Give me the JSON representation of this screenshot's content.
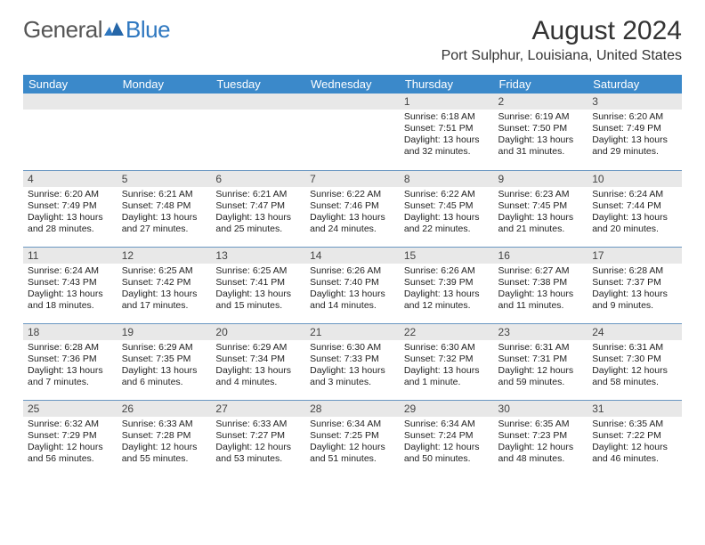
{
  "logo": {
    "word1": "General",
    "word2": "Blue"
  },
  "title": "August 2024",
  "location": "Port Sulphur, Louisiana, United States",
  "colors": {
    "header_bg": "#3b89ca",
    "header_text": "#ffffff",
    "daynum_bg": "#e8e8e8",
    "row_divider": "#6a97c2",
    "logo_gray": "#555555",
    "logo_blue": "#2f78c0"
  },
  "weekdays": [
    "Sunday",
    "Monday",
    "Tuesday",
    "Wednesday",
    "Thursday",
    "Friday",
    "Saturday"
  ],
  "weeks": [
    [
      null,
      null,
      null,
      null,
      {
        "d": "1",
        "sr": "Sunrise: 6:18 AM",
        "ss": "Sunset: 7:51 PM",
        "dl": "Daylight: 13 hours and 32 minutes."
      },
      {
        "d": "2",
        "sr": "Sunrise: 6:19 AM",
        "ss": "Sunset: 7:50 PM",
        "dl": "Daylight: 13 hours and 31 minutes."
      },
      {
        "d": "3",
        "sr": "Sunrise: 6:20 AM",
        "ss": "Sunset: 7:49 PM",
        "dl": "Daylight: 13 hours and 29 minutes."
      }
    ],
    [
      {
        "d": "4",
        "sr": "Sunrise: 6:20 AM",
        "ss": "Sunset: 7:49 PM",
        "dl": "Daylight: 13 hours and 28 minutes."
      },
      {
        "d": "5",
        "sr": "Sunrise: 6:21 AM",
        "ss": "Sunset: 7:48 PM",
        "dl": "Daylight: 13 hours and 27 minutes."
      },
      {
        "d": "6",
        "sr": "Sunrise: 6:21 AM",
        "ss": "Sunset: 7:47 PM",
        "dl": "Daylight: 13 hours and 25 minutes."
      },
      {
        "d": "7",
        "sr": "Sunrise: 6:22 AM",
        "ss": "Sunset: 7:46 PM",
        "dl": "Daylight: 13 hours and 24 minutes."
      },
      {
        "d": "8",
        "sr": "Sunrise: 6:22 AM",
        "ss": "Sunset: 7:45 PM",
        "dl": "Daylight: 13 hours and 22 minutes."
      },
      {
        "d": "9",
        "sr": "Sunrise: 6:23 AM",
        "ss": "Sunset: 7:45 PM",
        "dl": "Daylight: 13 hours and 21 minutes."
      },
      {
        "d": "10",
        "sr": "Sunrise: 6:24 AM",
        "ss": "Sunset: 7:44 PM",
        "dl": "Daylight: 13 hours and 20 minutes."
      }
    ],
    [
      {
        "d": "11",
        "sr": "Sunrise: 6:24 AM",
        "ss": "Sunset: 7:43 PM",
        "dl": "Daylight: 13 hours and 18 minutes."
      },
      {
        "d": "12",
        "sr": "Sunrise: 6:25 AM",
        "ss": "Sunset: 7:42 PM",
        "dl": "Daylight: 13 hours and 17 minutes."
      },
      {
        "d": "13",
        "sr": "Sunrise: 6:25 AM",
        "ss": "Sunset: 7:41 PM",
        "dl": "Daylight: 13 hours and 15 minutes."
      },
      {
        "d": "14",
        "sr": "Sunrise: 6:26 AM",
        "ss": "Sunset: 7:40 PM",
        "dl": "Daylight: 13 hours and 14 minutes."
      },
      {
        "d": "15",
        "sr": "Sunrise: 6:26 AM",
        "ss": "Sunset: 7:39 PM",
        "dl": "Daylight: 13 hours and 12 minutes."
      },
      {
        "d": "16",
        "sr": "Sunrise: 6:27 AM",
        "ss": "Sunset: 7:38 PM",
        "dl": "Daylight: 13 hours and 11 minutes."
      },
      {
        "d": "17",
        "sr": "Sunrise: 6:28 AM",
        "ss": "Sunset: 7:37 PM",
        "dl": "Daylight: 13 hours and 9 minutes."
      }
    ],
    [
      {
        "d": "18",
        "sr": "Sunrise: 6:28 AM",
        "ss": "Sunset: 7:36 PM",
        "dl": "Daylight: 13 hours and 7 minutes."
      },
      {
        "d": "19",
        "sr": "Sunrise: 6:29 AM",
        "ss": "Sunset: 7:35 PM",
        "dl": "Daylight: 13 hours and 6 minutes."
      },
      {
        "d": "20",
        "sr": "Sunrise: 6:29 AM",
        "ss": "Sunset: 7:34 PM",
        "dl": "Daylight: 13 hours and 4 minutes."
      },
      {
        "d": "21",
        "sr": "Sunrise: 6:30 AM",
        "ss": "Sunset: 7:33 PM",
        "dl": "Daylight: 13 hours and 3 minutes."
      },
      {
        "d": "22",
        "sr": "Sunrise: 6:30 AM",
        "ss": "Sunset: 7:32 PM",
        "dl": "Daylight: 13 hours and 1 minute."
      },
      {
        "d": "23",
        "sr": "Sunrise: 6:31 AM",
        "ss": "Sunset: 7:31 PM",
        "dl": "Daylight: 12 hours and 59 minutes."
      },
      {
        "d": "24",
        "sr": "Sunrise: 6:31 AM",
        "ss": "Sunset: 7:30 PM",
        "dl": "Daylight: 12 hours and 58 minutes."
      }
    ],
    [
      {
        "d": "25",
        "sr": "Sunrise: 6:32 AM",
        "ss": "Sunset: 7:29 PM",
        "dl": "Daylight: 12 hours and 56 minutes."
      },
      {
        "d": "26",
        "sr": "Sunrise: 6:33 AM",
        "ss": "Sunset: 7:28 PM",
        "dl": "Daylight: 12 hours and 55 minutes."
      },
      {
        "d": "27",
        "sr": "Sunrise: 6:33 AM",
        "ss": "Sunset: 7:27 PM",
        "dl": "Daylight: 12 hours and 53 minutes."
      },
      {
        "d": "28",
        "sr": "Sunrise: 6:34 AM",
        "ss": "Sunset: 7:25 PM",
        "dl": "Daylight: 12 hours and 51 minutes."
      },
      {
        "d": "29",
        "sr": "Sunrise: 6:34 AM",
        "ss": "Sunset: 7:24 PM",
        "dl": "Daylight: 12 hours and 50 minutes."
      },
      {
        "d": "30",
        "sr": "Sunrise: 6:35 AM",
        "ss": "Sunset: 7:23 PM",
        "dl": "Daylight: 12 hours and 48 minutes."
      },
      {
        "d": "31",
        "sr": "Sunrise: 6:35 AM",
        "ss": "Sunset: 7:22 PM",
        "dl": "Daylight: 12 hours and 46 minutes."
      }
    ]
  ]
}
